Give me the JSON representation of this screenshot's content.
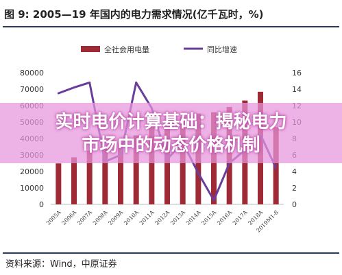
{
  "figure": {
    "title": "图 9: 2005—19 年国内的电力需求情况(亿千瓦时，%)",
    "source": "资料来源：Wind，中原证券"
  },
  "overlay": {
    "line1": "实时电价计算基础：揭秘电力",
    "line2": "市场中的动态价格机制"
  },
  "colors": {
    "bar": "#9e2a36",
    "line": "#6a3d9a",
    "rule": "#2b3b55"
  },
  "chart_data": {
    "type": "bar",
    "categories": [
      "2005A",
      "2006A",
      "2007A",
      "2008A",
      "2009A",
      "2010A",
      "2011A",
      "2012A",
      "2013A",
      "2014A",
      "2015A",
      "2016A",
      "2017A",
      "2018A",
      "2019M1-8"
    ],
    "series": [
      {
        "name": "全社会用电量",
        "type": "bar",
        "axis": "left",
        "values": [
          24900,
          28600,
          32700,
          34500,
          36900,
          41900,
          47000,
          49600,
          53200,
          55200,
          56000,
          59200,
          63100,
          68400,
          46900
        ]
      },
      {
        "name": "同比增速",
        "type": "line",
        "axis": "right",
        "values": [
          13.5,
          14.2,
          14.8,
          5.2,
          6.0,
          14.8,
          11.7,
          5.5,
          7.5,
          3.8,
          0.5,
          5.0,
          6.6,
          8.5,
          4.4
        ]
      }
    ],
    "y_left": {
      "min": 0,
      "max": 80000,
      "ticks": [
        "0",
        "10000",
        "20000",
        "30000",
        "40000",
        "50000",
        "60000",
        "70000",
        "80000"
      ]
    },
    "y_right": {
      "min": 0,
      "max": 16,
      "ticks": [
        "0",
        "2",
        "4",
        "6",
        "8",
        "10",
        "12",
        "14",
        "16"
      ]
    },
    "legend_position": "top",
    "grid": false
  }
}
